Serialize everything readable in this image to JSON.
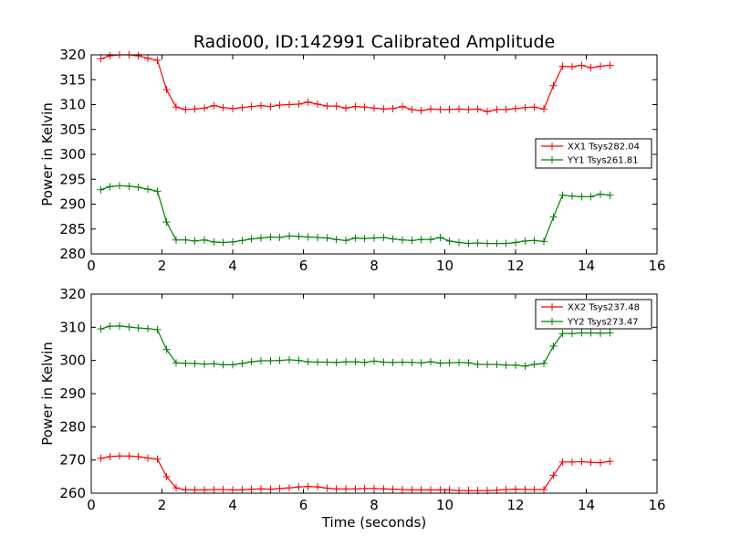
{
  "chart_data": [
    {
      "type": "line",
      "title": "Radio00, ID:142991 Calibrated Amplitude",
      "xlabel": "",
      "ylabel": "Power in Kelvin",
      "xlim": [
        0,
        16
      ],
      "ylim": [
        280,
        320
      ],
      "xticks": [
        0,
        2,
        4,
        6,
        8,
        10,
        12,
        14,
        16
      ],
      "yticks": [
        280,
        285,
        290,
        295,
        300,
        305,
        310,
        315,
        320
      ],
      "x": [
        0.27,
        0.53,
        0.8,
        1.07,
        1.33,
        1.6,
        1.87,
        2.13,
        2.4,
        2.67,
        2.93,
        3.2,
        3.47,
        3.73,
        4.0,
        4.27,
        4.53,
        4.8,
        5.07,
        5.33,
        5.6,
        5.87,
        6.13,
        6.4,
        6.67,
        6.93,
        7.2,
        7.47,
        7.73,
        8.0,
        8.27,
        8.53,
        8.8,
        9.07,
        9.33,
        9.6,
        9.87,
        10.13,
        10.4,
        10.67,
        10.93,
        11.2,
        11.47,
        11.73,
        12.0,
        12.27,
        12.53,
        12.8,
        13.07,
        13.33,
        13.6,
        13.87,
        14.13,
        14.4,
        14.67
      ],
      "series": [
        {
          "name": "XX1 Tsys282.04",
          "color": "#ff0000",
          "values": [
            319.2,
            319.8,
            320.0,
            320.0,
            319.8,
            319.3,
            318.9,
            313.0,
            309.5,
            309.0,
            309.1,
            309.3,
            309.8,
            309.4,
            309.2,
            309.4,
            309.6,
            309.8,
            309.6,
            309.9,
            310.0,
            310.1,
            310.5,
            310.1,
            309.7,
            309.7,
            309.3,
            309.6,
            309.5,
            309.3,
            309.1,
            309.2,
            309.6,
            309.0,
            308.8,
            309.1,
            309.0,
            309.0,
            309.1,
            309.0,
            309.1,
            308.6,
            309.0,
            309.0,
            309.2,
            309.4,
            309.5,
            309.1,
            313.8,
            317.7,
            317.6,
            317.9,
            317.4,
            317.7,
            317.9
          ]
        },
        {
          "name": "YY1 Tsys261.81",
          "color": "#008000",
          "values": [
            292.9,
            293.5,
            293.7,
            293.6,
            293.4,
            293.0,
            292.6,
            286.4,
            282.8,
            282.8,
            282.6,
            282.8,
            282.4,
            282.3,
            282.4,
            282.7,
            283.0,
            283.2,
            283.4,
            283.3,
            283.6,
            283.5,
            283.4,
            283.3,
            283.2,
            282.9,
            282.7,
            283.2,
            283.1,
            283.2,
            283.3,
            283.0,
            282.8,
            282.7,
            282.9,
            282.9,
            283.3,
            282.6,
            282.3,
            282.1,
            282.2,
            282.1,
            282.1,
            282.1,
            282.3,
            282.6,
            282.7,
            282.5,
            287.4,
            291.8,
            291.6,
            291.5,
            291.5,
            292.0,
            291.8
          ]
        }
      ],
      "legend": {
        "position": "right"
      }
    },
    {
      "type": "line",
      "title": "",
      "xlabel": "Time (seconds)",
      "ylabel": "Power in Kelvin",
      "xlim": [
        0,
        16
      ],
      "ylim": [
        260,
        320
      ],
      "xticks": [
        0,
        2,
        4,
        6,
        8,
        10,
        12,
        14,
        16
      ],
      "yticks": [
        260,
        270,
        280,
        290,
        300,
        310,
        320
      ],
      "x": [
        0.27,
        0.53,
        0.8,
        1.07,
        1.33,
        1.6,
        1.87,
        2.13,
        2.4,
        2.67,
        2.93,
        3.2,
        3.47,
        3.73,
        4.0,
        4.27,
        4.53,
        4.8,
        5.07,
        5.33,
        5.6,
        5.87,
        6.13,
        6.4,
        6.67,
        6.93,
        7.2,
        7.47,
        7.73,
        8.0,
        8.27,
        8.53,
        8.8,
        9.07,
        9.33,
        9.6,
        9.87,
        10.13,
        10.4,
        10.67,
        10.93,
        11.2,
        11.47,
        11.73,
        12.0,
        12.27,
        12.53,
        12.8,
        13.07,
        13.33,
        13.6,
        13.87,
        14.13,
        14.4,
        14.67
      ],
      "series": [
        {
          "name": "XX2 Tsys237.48",
          "color": "#ff0000",
          "values": [
            270.5,
            271.0,
            271.2,
            271.2,
            271.0,
            270.6,
            270.3,
            265.0,
            261.6,
            261.0,
            261.0,
            261.0,
            261.1,
            261.1,
            261.0,
            261.0,
            261.2,
            261.3,
            261.2,
            261.4,
            261.6,
            261.9,
            262.0,
            261.9,
            261.5,
            261.3,
            261.3,
            261.3,
            261.4,
            261.4,
            261.3,
            261.2,
            261.1,
            261.0,
            261.0,
            261.0,
            261.0,
            261.0,
            260.8,
            260.8,
            260.8,
            260.8,
            260.9,
            261.1,
            261.2,
            261.1,
            261.1,
            261.1,
            265.4,
            269.4,
            269.4,
            269.5,
            269.3,
            269.2,
            269.6
          ]
        },
        {
          "name": "YY2 Tsys273.47",
          "color": "#008000",
          "values": [
            309.5,
            310.3,
            310.4,
            310.1,
            309.8,
            309.6,
            309.3,
            303.3,
            299.3,
            299.1,
            299.1,
            298.9,
            299.0,
            298.7,
            298.7,
            299.1,
            299.6,
            299.9,
            299.9,
            300.0,
            300.2,
            300.0,
            299.6,
            299.5,
            299.5,
            299.4,
            299.6,
            299.6,
            299.4,
            299.8,
            299.5,
            299.4,
            299.5,
            299.4,
            299.3,
            299.6,
            299.2,
            299.3,
            299.4,
            299.3,
            298.8,
            298.8,
            298.8,
            298.6,
            298.6,
            298.3,
            298.8,
            299.1,
            304.3,
            308.1,
            308.1,
            308.3,
            308.3,
            308.2,
            308.3
          ]
        }
      ],
      "legend": {
        "position": "top-right"
      }
    }
  ]
}
